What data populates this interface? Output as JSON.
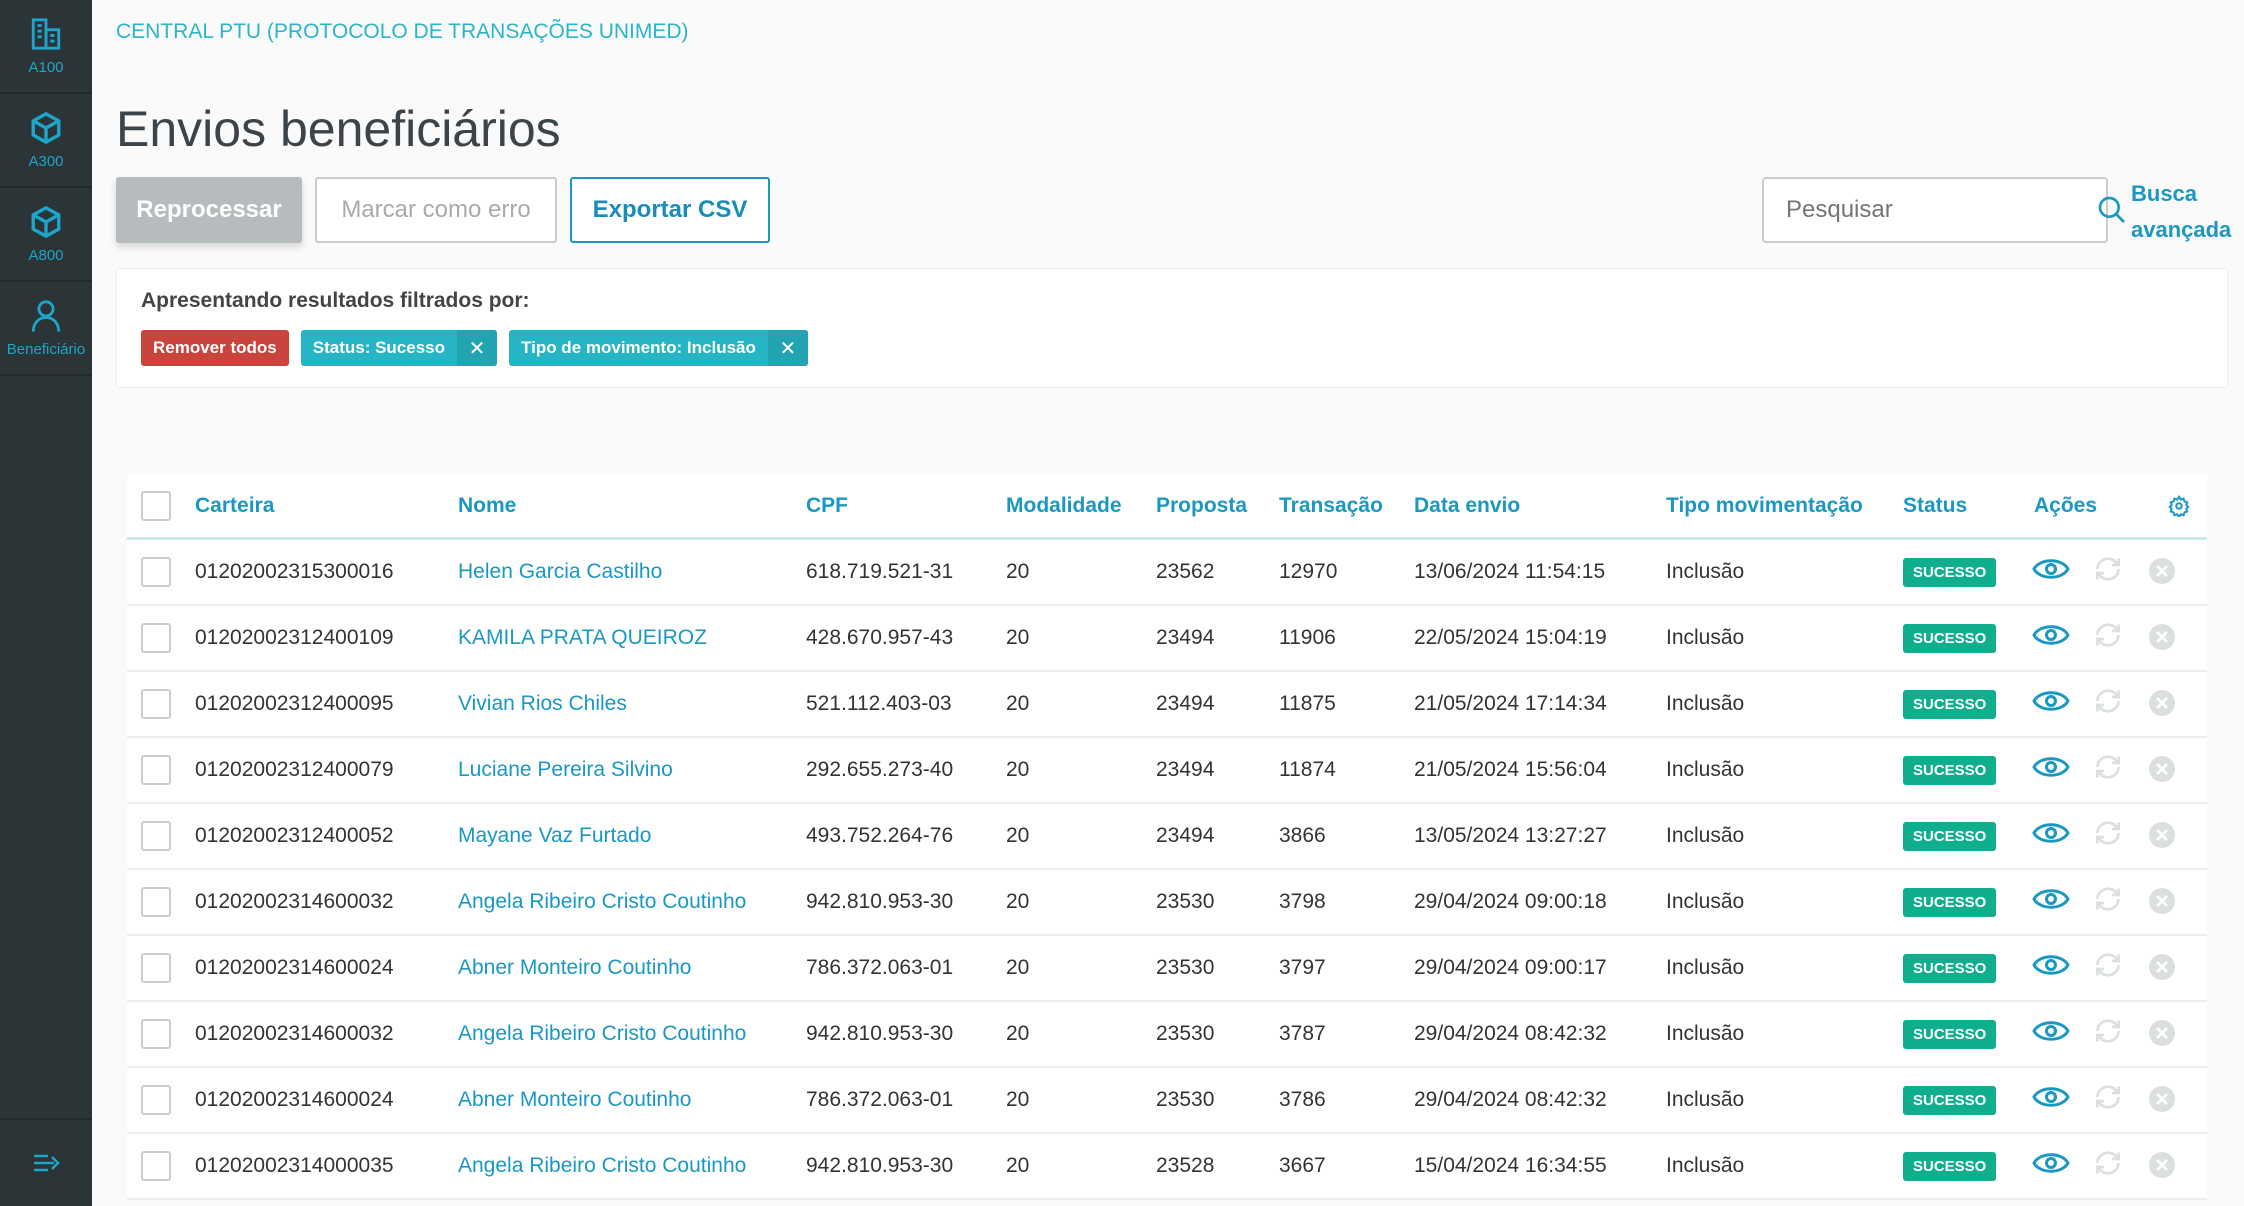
{
  "sidebar": {
    "items": [
      {
        "label": "A100",
        "icon": "building-icon"
      },
      {
        "label": "A300",
        "icon": "box-icon"
      },
      {
        "label": "A800",
        "icon": "box-icon"
      },
      {
        "label": "Beneficiário",
        "icon": "user-icon"
      }
    ],
    "collapse_icon": "expand-menu-icon"
  },
  "header": {
    "app_title": "CENTRAL PTU (PROTOCOLO DE TRANSAÇÕES UNIMED)",
    "page_title": "Envios beneficiários"
  },
  "toolbar": {
    "reprocess": "Reprocessar",
    "mark_error": "Marcar como erro",
    "export": "Exportar CSV",
    "search_placeholder": "Pesquisar",
    "advanced_search_1": "Busca",
    "advanced_search_2": "avançada"
  },
  "filters": {
    "title": "Apresentando resultados filtrados por:",
    "remove_all": "Remover todos",
    "chips": [
      "Status: Sucesso",
      "Tipo de movimento: Inclusão"
    ]
  },
  "colors": {
    "accent": "#1a98c1",
    "success": "#0fae8c",
    "danger": "#c9443d",
    "chip": "#26b5c4",
    "sidebar": "#2b3437"
  },
  "table": {
    "columns": [
      "Carteira",
      "Nome",
      "CPF",
      "Modalidade",
      "Proposta",
      "Transação",
      "Data envio",
      "Tipo movimentação",
      "Status",
      "Ações"
    ],
    "rows": [
      {
        "carteira": "01202002315300016",
        "nome": "Helen Garcia Castilho",
        "cpf": "618.719.521-31",
        "modalidade": "20",
        "proposta": "23562",
        "transacao": "12970",
        "data": "13/06/2024 11:54:15",
        "tipo": "Inclusão",
        "status": "SUCESSO"
      },
      {
        "carteira": "01202002312400109",
        "nome": "KAMILA PRATA QUEIROZ",
        "cpf": "428.670.957-43",
        "modalidade": "20",
        "proposta": "23494",
        "transacao": "11906",
        "data": "22/05/2024 15:04:19",
        "tipo": "Inclusão",
        "status": "SUCESSO"
      },
      {
        "carteira": "01202002312400095",
        "nome": "Vivian Rios Chiles",
        "cpf": "521.112.403-03",
        "modalidade": "20",
        "proposta": "23494",
        "transacao": "11875",
        "data": "21/05/2024 17:14:34",
        "tipo": "Inclusão",
        "status": "SUCESSO"
      },
      {
        "carteira": "01202002312400079",
        "nome": "Luciane Pereira Silvino",
        "cpf": "292.655.273-40",
        "modalidade": "20",
        "proposta": "23494",
        "transacao": "11874",
        "data": "21/05/2024 15:56:04",
        "tipo": "Inclusão",
        "status": "SUCESSO"
      },
      {
        "carteira": "01202002312400052",
        "nome": "Mayane Vaz Furtado",
        "cpf": "493.752.264-76",
        "modalidade": "20",
        "proposta": "23494",
        "transacao": "3866",
        "data": "13/05/2024 13:27:27",
        "tipo": "Inclusão",
        "status": "SUCESSO"
      },
      {
        "carteira": "01202002314600032",
        "nome": "Angela Ribeiro Cristo Coutinho",
        "cpf": "942.810.953-30",
        "modalidade": "20",
        "proposta": "23530",
        "transacao": "3798",
        "data": "29/04/2024 09:00:18",
        "tipo": "Inclusão",
        "status": "SUCESSO"
      },
      {
        "carteira": "01202002314600024",
        "nome": "Abner Monteiro Coutinho",
        "cpf": "786.372.063-01",
        "modalidade": "20",
        "proposta": "23530",
        "transacao": "3797",
        "data": "29/04/2024 09:00:17",
        "tipo": "Inclusão",
        "status": "SUCESSO"
      },
      {
        "carteira": "01202002314600032",
        "nome": "Angela Ribeiro Cristo Coutinho",
        "cpf": "942.810.953-30",
        "modalidade": "20",
        "proposta": "23530",
        "transacao": "3787",
        "data": "29/04/2024 08:42:32",
        "tipo": "Inclusão",
        "status": "SUCESSO"
      },
      {
        "carteira": "01202002314600024",
        "nome": "Abner Monteiro Coutinho",
        "cpf": "786.372.063-01",
        "modalidade": "20",
        "proposta": "23530",
        "transacao": "3786",
        "data": "29/04/2024 08:42:32",
        "tipo": "Inclusão",
        "status": "SUCESSO"
      },
      {
        "carteira": "01202002314000035",
        "nome": "Angela Ribeiro Cristo Coutinho",
        "cpf": "942.810.953-30",
        "modalidade": "20",
        "proposta": "23528",
        "transacao": "3667",
        "data": "15/04/2024 16:34:55",
        "tipo": "Inclusão",
        "status": "SUCESSO"
      }
    ]
  }
}
